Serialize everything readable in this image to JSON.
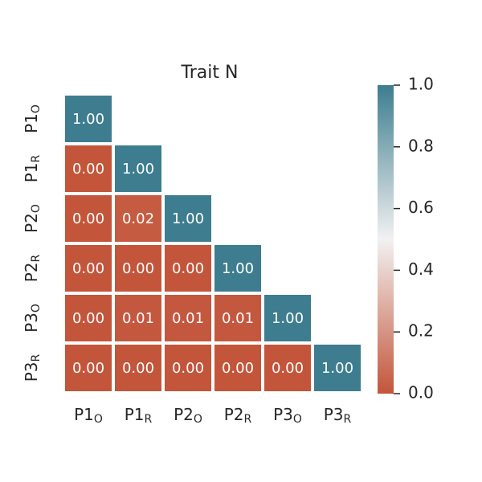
{
  "chart_data": {
    "type": "heatmap",
    "title": "Trait N",
    "categories": [
      {
        "text": "P1",
        "sub": "O"
      },
      {
        "text": "P1",
        "sub": "R"
      },
      {
        "text": "P2",
        "sub": "O"
      },
      {
        "text": "P2",
        "sub": "R"
      },
      {
        "text": "P3",
        "sub": "O"
      },
      {
        "text": "P3",
        "sub": "R"
      }
    ],
    "values": [
      [
        1.0,
        null,
        null,
        null,
        null,
        null
      ],
      [
        0.0,
        1.0,
        null,
        null,
        null,
        null
      ],
      [
        0.0,
        0.02,
        1.0,
        null,
        null,
        null
      ],
      [
        0.0,
        0.0,
        0.0,
        1.0,
        null,
        null
      ],
      [
        0.0,
        0.01,
        0.01,
        0.01,
        1.0,
        null
      ],
      [
        0.0,
        0.0,
        0.0,
        0.0,
        0.0,
        1.0
      ]
    ],
    "value_labels": [
      [
        "1.00",
        null,
        null,
        null,
        null,
        null
      ],
      [
        "0.00",
        "1.00",
        null,
        null,
        null,
        null
      ],
      [
        "0.00",
        "0.02",
        "1.00",
        null,
        null,
        null
      ],
      [
        "0.00",
        "0.00",
        "0.00",
        "1.00",
        null,
        null
      ],
      [
        "0.00",
        "0.01",
        "0.01",
        "0.01",
        "1.00",
        null
      ],
      [
        "0.00",
        "0.00",
        "0.00",
        "0.00",
        "0.00",
        "1.00"
      ]
    ],
    "colormap": [
      "#c3553a",
      "#f2f1f1",
      "#3d7d8f"
    ],
    "zlim": [
      0,
      1
    ],
    "zticks": [
      {
        "value": 0,
        "label": "0.0"
      },
      {
        "value": 0.2,
        "label": "0.2"
      },
      {
        "value": 0.4,
        "label": "0.4"
      },
      {
        "value": 0.6,
        "label": "0.6"
      },
      {
        "value": 0.8,
        "label": "0.8"
      },
      {
        "value": 1,
        "label": "1.0"
      }
    ]
  }
}
